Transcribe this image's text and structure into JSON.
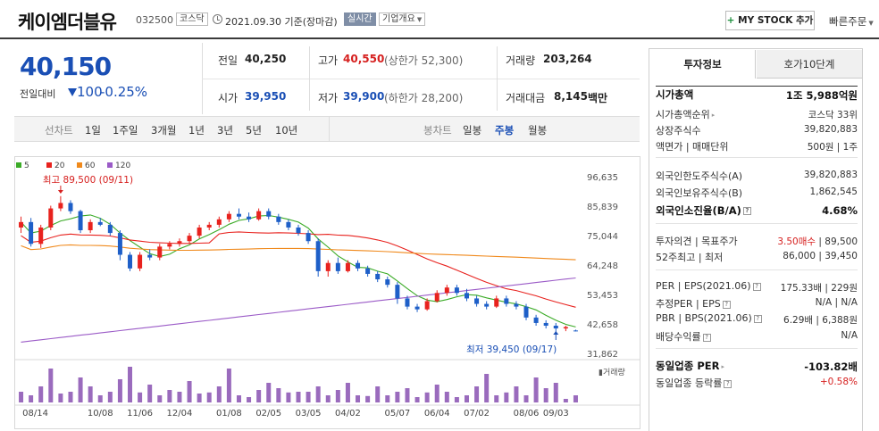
{
  "header": {
    "name": "케이엠더블유",
    "code": "032500",
    "market": "코스닥",
    "date": "2021.09.30 기준(장마감)",
    "realtime": "실시간",
    "company_info": "기업개요",
    "mystock_plus": "+",
    "mystock": "MY STOCK 추가",
    "quick_order": "빠른주문"
  },
  "price": {
    "current": "40,150",
    "change_label": "전일대비",
    "change": "100",
    "change_pct": "-0.25%"
  },
  "quote": {
    "prev_label": "전일",
    "prev": "40,250",
    "high_label": "고가",
    "high": "40,550",
    "upper_limit": "(상한가 52,300)",
    "volume_label": "거래량",
    "volume": "203,264",
    "open_label": "시가",
    "open": "39,950",
    "low_label": "저가",
    "low": "39,900",
    "lower_limit": "(하한가 28,200)",
    "amount_label": "거래대금",
    "amount": "8,145",
    "amount_unit": "백만"
  },
  "toolbar": {
    "line_label": "선차트",
    "ranges": [
      "1일",
      "1주일",
      "3개월",
      "1년",
      "3년",
      "5년",
      "10년"
    ],
    "candle_label": "봉차트",
    "candles": [
      "일봉",
      "주봉",
      "월봉"
    ],
    "active_candle": "주봉"
  },
  "chart_data": {
    "type": "candlestick",
    "legend": [
      "5",
      "20",
      "60",
      "120"
    ],
    "ma_colors": [
      "#3bab27",
      "#e8221e",
      "#f0891b",
      "#9b5bc7"
    ],
    "up_color": "#e8221e",
    "down_color": "#1e5fc8",
    "y_ticks": [
      "96,635",
      "85,839",
      "75,044",
      "64,248",
      "53,453",
      "42,658",
      "31,862"
    ],
    "y_range": [
      31862,
      96635
    ],
    "x_ticks": [
      "08/14",
      "10/08",
      "11/06",
      "12/04",
      "01/08",
      "02/05",
      "03/05",
      "04/02",
      "05/07",
      "06/04",
      "07/02",
      "08/06",
      "09/03"
    ],
    "volume_label": "거래량",
    "max_annotation": "최고 89,500 (09/11)",
    "min_annotation": "최저 39,450 (09/17)",
    "candles": [
      [
        78000,
        82000,
        76000,
        80000
      ],
      [
        80000,
        81500,
        71000,
        72000
      ],
      [
        72000,
        79000,
        70500,
        78000
      ],
      [
        78000,
        86000,
        77000,
        85000
      ],
      [
        85000,
        89500,
        84000,
        87000
      ],
      [
        87000,
        88000,
        83000,
        84000
      ],
      [
        84000,
        84500,
        76000,
        77000
      ],
      [
        77000,
        81000,
        76000,
        80000
      ],
      [
        80000,
        81500,
        78500,
        79000
      ],
      [
        79000,
        80000,
        75000,
        76000
      ],
      [
        76000,
        77000,
        66000,
        68000
      ],
      [
        68000,
        69000,
        62000,
        63000
      ],
      [
        63000,
        69000,
        62000,
        68000
      ],
      [
        68000,
        70000,
        66000,
        67000
      ],
      [
        67000,
        72000,
        66000,
        71000
      ],
      [
        71000,
        73000,
        70000,
        72000
      ],
      [
        72000,
        74000,
        71000,
        73000
      ],
      [
        73000,
        76000,
        72000,
        75000
      ],
      [
        75000,
        79000,
        74000,
        78000
      ],
      [
        78000,
        80000,
        77000,
        79000
      ],
      [
        79000,
        82000,
        78000,
        81000
      ],
      [
        81000,
        84000,
        80000,
        83000
      ],
      [
        83000,
        85000,
        81000,
        82000
      ],
      [
        82000,
        83500,
        80000,
        81000
      ],
      [
        81000,
        85000,
        80500,
        84000
      ],
      [
        84000,
        85000,
        81000,
        82000
      ],
      [
        82000,
        83000,
        79000,
        80000
      ],
      [
        80000,
        81000,
        77000,
        78000
      ],
      [
        78000,
        79000,
        75000,
        76000
      ],
      [
        76000,
        77000,
        72000,
        73000
      ],
      [
        73000,
        74000,
        60000,
        62000
      ],
      [
        62000,
        66000,
        60000,
        65000
      ],
      [
        65000,
        67000,
        61000,
        62000
      ],
      [
        62000,
        66000,
        61500,
        65000
      ],
      [
        65000,
        66000,
        62000,
        63000
      ],
      [
        63000,
        64000,
        60000,
        61000
      ],
      [
        61000,
        62000,
        58000,
        59000
      ],
      [
        59000,
        60000,
        56000,
        57000
      ],
      [
        57000,
        58000,
        50000,
        52000
      ],
      [
        52000,
        53000,
        48000,
        49000
      ],
      [
        49000,
        50000,
        47000,
        48000
      ],
      [
        48000,
        52000,
        47500,
        51000
      ],
      [
        51000,
        55000,
        50500,
        54000
      ],
      [
        54000,
        57000,
        53000,
        56000
      ],
      [
        56000,
        57000,
        53000,
        54000
      ],
      [
        54000,
        55500,
        51000,
        52000
      ],
      [
        52000,
        53000,
        49000,
        50000
      ],
      [
        50000,
        51000,
        48000,
        49000
      ],
      [
        49000,
        53000,
        48500,
        52000
      ],
      [
        52000,
        53000,
        49000,
        50000
      ],
      [
        50000,
        51000,
        48000,
        49000
      ],
      [
        49000,
        50000,
        44000,
        45000
      ],
      [
        45000,
        46000,
        42000,
        43000
      ],
      [
        43000,
        44000,
        41000,
        42000
      ],
      [
        42000,
        43000,
        39450,
        41000
      ],
      [
        41000,
        42000,
        40000,
        41500
      ],
      [
        40250,
        40550,
        39900,
        40150
      ]
    ],
    "volume": [
      30,
      20,
      45,
      95,
      25,
      30,
      70,
      45,
      20,
      30,
      65,
      100,
      28,
      50,
      20,
      35,
      30,
      60,
      25,
      28,
      45,
      95,
      20,
      15,
      35,
      55,
      40,
      28,
      30,
      30,
      45,
      20,
      35,
      55,
      20,
      18,
      45,
      20,
      30,
      40,
      15,
      28,
      50,
      30,
      15,
      20,
      45,
      80,
      20,
      28,
      45,
      20,
      70,
      40,
      55,
      10,
      20
    ]
  },
  "right_panel": {
    "tab_invest": "투자정보",
    "tab_hoga": "호가10단계",
    "rows": [
      {
        "label": "시가총액",
        "value": "1조 5,988억원",
        "bold": true
      },
      {
        "label": "시가총액순위",
        "value": "코스닥 33위",
        "arrow": "▸"
      },
      {
        "label": "상장주식수",
        "value": "39,820,883"
      },
      {
        "label": "액면가 | 매매단위",
        "value": "500원 | 1주"
      },
      {
        "label": "외국인한도주식수(A)",
        "value": "39,820,883"
      },
      {
        "label": "외국인보유주식수(B)",
        "value": "1,862,545"
      },
      {
        "label": "외국인소진율(B/A)",
        "value": "4.68%",
        "bold": true,
        "help": "?"
      },
      {
        "label": "투자의견 | 목표주가",
        "value_red": "3.50매수",
        "value": " | 89,500"
      },
      {
        "label": "52주최고 | 최저",
        "value": "86,000 | 39,450"
      },
      {
        "label": "PER | EPS(2021.06)",
        "value": "175.33배 | 229원",
        "help": "?"
      },
      {
        "label": "추정PER | EPS",
        "value": "N/A | N/A",
        "help": "?"
      },
      {
        "label": "PBR | BPS(2021.06)",
        "value": "6.29배 | 6,388원",
        "help": "?"
      },
      {
        "label": "배당수익률",
        "value": "N/A",
        "help": "?"
      },
      {
        "label": "동일업종 PER",
        "value": "-103.82배",
        "bold": true,
        "arrow": "▸"
      },
      {
        "label": "동일업종 등락률",
        "value": "+0.58%",
        "red": true,
        "help": "?"
      }
    ]
  }
}
